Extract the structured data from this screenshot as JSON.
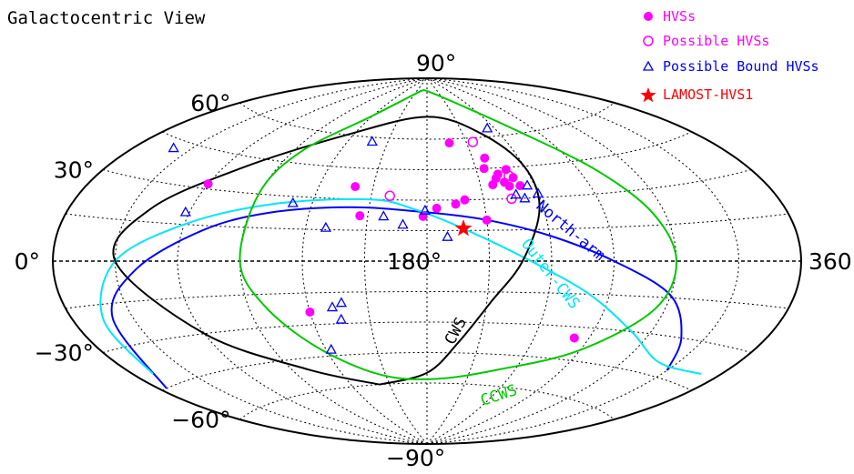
{
  "chart_data": {
    "type": "scatter",
    "projection": "aitoff",
    "title": "Galactocentric View",
    "x_ticks": [
      {
        "label": "0°",
        "lon": 0
      },
      {
        "label": "180°",
        "lon": 180
      },
      {
        "label": "360°",
        "lon": 360
      }
    ],
    "y_ticks": [
      {
        "label": "90°",
        "lat": 90
      },
      {
        "label": "60°",
        "lat": 60
      },
      {
        "label": "30°",
        "lat": 30
      },
      {
        "label": "0°",
        "lat": 0
      },
      {
        "label": "−30°",
        "lat": -30
      },
      {
        "label": "−60°",
        "lat": -60
      },
      {
        "label": "−90°",
        "lat": -90
      }
    ],
    "grid": true,
    "legend": {
      "position": "top-right",
      "entries": [
        {
          "label": "HVSs",
          "marker": "filled-circle",
          "color": "#ff00ff"
        },
        {
          "label": "Possible HVSs",
          "marker": "open-circle",
          "color": "#ff00ff"
        },
        {
          "label": "Possible Bound HVSs",
          "marker": "open-triangle",
          "color": "#0000ff"
        },
        {
          "label": "LAMOST-HVS1",
          "marker": "star",
          "color": "#ff0000"
        }
      ]
    },
    "series": [
      {
        "name": "HVSs",
        "marker": "filled-circle",
        "color": "#ff00ff",
        "points": [
          {
            "lon": 60,
            "lat": 32
          },
          {
            "lon": 120,
            "lat": -24
          },
          {
            "lon": 140,
            "lat": 36
          },
          {
            "lon": 146,
            "lat": 22
          },
          {
            "lon": 178,
            "lat": 22
          },
          {
            "lon": 185,
            "lat": 26
          },
          {
            "lon": 195,
            "lat": 28
          },
          {
            "lon": 197,
            "lat": 58
          },
          {
            "lon": 200,
            "lat": 30
          },
          {
            "lon": 210,
            "lat": 20
          },
          {
            "lon": 215,
            "lat": 45
          },
          {
            "lon": 217,
            "lat": 37
          },
          {
            "lon": 218,
            "lat": 50
          },
          {
            "lon": 220,
            "lat": 40
          },
          {
            "lon": 222,
            "lat": 42
          },
          {
            "lon": 224,
            "lat": 38
          },
          {
            "lon": 226,
            "lat": 36
          },
          {
            "lon": 228,
            "lat": 44
          },
          {
            "lon": 230,
            "lat": 40
          },
          {
            "lon": 232,
            "lat": 36
          },
          {
            "lon": 262,
            "lat": -35
          }
        ]
      },
      {
        "name": "Possible HVSs",
        "marker": "open-circle",
        "color": "#ff00ff",
        "points": [
          {
            "lon": 160,
            "lat": 32
          },
          {
            "lon": 215,
            "lat": 58
          },
          {
            "lon": 225,
            "lat": 30
          },
          {
            "lon": 228,
            "lat": 41
          }
        ]
      },
      {
        "name": "Possible Bound HVSs",
        "marker": "open-triangle",
        "color": "#0000ff",
        "points": [
          {
            "lon": 20,
            "lat": 42
          },
          {
            "lon": 58,
            "lat": 20
          },
          {
            "lon": 110,
            "lat": 27
          },
          {
            "lon": 130,
            "lat": 16
          },
          {
            "lon": 132,
            "lat": -22
          },
          {
            "lon": 135,
            "lat": -28
          },
          {
            "lon": 137,
            "lat": -20
          },
          {
            "lon": 138,
            "lat": 58
          },
          {
            "lon": 168,
            "lat": 18
          },
          {
            "lon": 158,
            "lat": 22
          },
          {
            "lon": 179,
            "lat": 25
          },
          {
            "lon": 190,
            "lat": 12
          },
          {
            "lon": 228,
            "lat": 32
          },
          {
            "lon": 232,
            "lat": 30
          },
          {
            "lon": 234,
            "lat": 64
          },
          {
            "lon": 236,
            "lat": 36
          },
          {
            "lon": 240,
            "lat": 32
          },
          {
            "lon": 123,
            "lat": -42
          }
        ]
      },
      {
        "name": "LAMOST-HVS1",
        "marker": "star",
        "color": "#ff0000",
        "points": [
          {
            "lon": 198,
            "lat": 16
          }
        ]
      }
    ],
    "curves": [
      {
        "label": "North-arm",
        "color": "#0000ff",
        "path": [
          [
            4,
            -45
          ],
          [
            20,
            -20
          ],
          [
            40,
            -3
          ],
          [
            70,
            13
          ],
          [
            100,
            22
          ],
          [
            140,
            26
          ],
          [
            180,
            24
          ],
          [
            210,
            20
          ],
          [
            240,
            12
          ],
          [
            270,
            0
          ],
          [
            300,
            -14
          ],
          [
            318,
            -30
          ],
          [
            330,
            -42
          ]
        ]
      },
      {
        "label": "Outer-CWS",
        "color": "#00e5ff",
        "path": [
          [
            10,
            -40
          ],
          [
            15,
            -20
          ],
          [
            30,
            0
          ],
          [
            60,
            15
          ],
          [
            100,
            26
          ],
          [
            150,
            30
          ],
          [
            175,
            25
          ],
          [
            200,
            15
          ],
          [
            230,
            0
          ],
          [
            260,
            -15
          ],
          [
            290,
            -30
          ],
          [
            320,
            -40
          ],
          [
            350,
            -40
          ]
        ]
      },
      {
        "label": "CWS",
        "color": "#000000",
        "path": [
          [
            142,
            -60
          ],
          [
            100,
            -50
          ],
          [
            60,
            -30
          ],
          [
            30,
            0
          ],
          [
            40,
            20
          ],
          [
            70,
            40
          ],
          [
            115,
            60
          ],
          [
            180,
            71
          ],
          [
            225,
            62
          ],
          [
            240,
            45
          ],
          [
            238,
            25
          ],
          [
            226,
            0
          ],
          [
            212,
            -20
          ],
          [
            198,
            -40
          ],
          [
            180,
            -55
          ],
          [
            142,
            -60
          ]
        ]
      },
      {
        "label": "CCWS",
        "color": "#00c800",
        "path": [
          [
            165,
            84
          ],
          [
            120,
            70
          ],
          [
            95,
            50
          ],
          [
            90,
            30
          ],
          [
            90,
            0
          ],
          [
            98,
            -20
          ],
          [
            115,
            -40
          ],
          [
            145,
            -55
          ],
          [
            185,
            -58
          ],
          [
            230,
            -52
          ],
          [
            270,
            -40
          ],
          [
            295,
            -20
          ],
          [
            300,
            0
          ],
          [
            294,
            20
          ],
          [
            280,
            40
          ],
          [
            255,
            62
          ],
          [
            200,
            82
          ],
          [
            165,
            84
          ]
        ]
      }
    ]
  }
}
